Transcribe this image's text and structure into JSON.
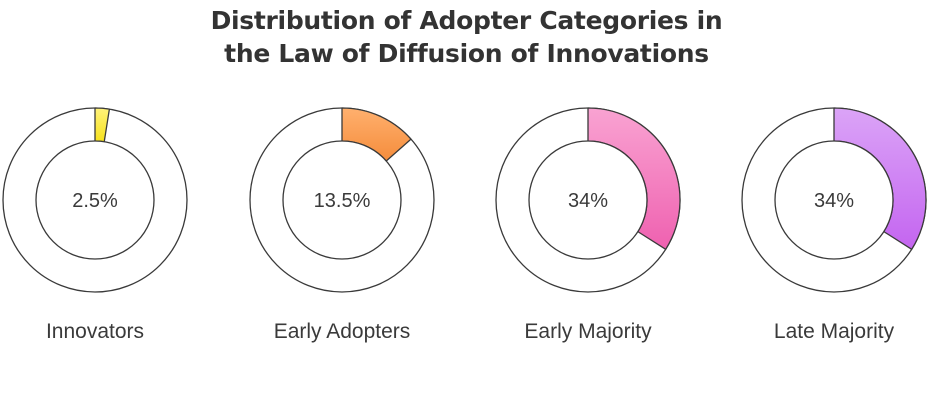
{
  "chart_data": {
    "type": "pie",
    "variant": "donut-small-multiples",
    "title_lines": [
      "Distribution of Adopter Categories in",
      "the Law of Diffusion of Innovations"
    ],
    "categories": [
      "Innovators",
      "Early Adopters",
      "Early Majority",
      "Late Majority"
    ],
    "values": [
      2.5,
      13.5,
      34,
      34
    ],
    "value_labels": [
      "2.5%",
      "13.5%",
      "34%",
      "34%"
    ],
    "unit": "%",
    "max": 100,
    "colors": [
      {
        "from": "#fff27a",
        "to": "#f7e21c"
      },
      {
        "from": "#ffb06e",
        "to": "#f58d3c"
      },
      {
        "from": "#f9a3d2",
        "to": "#ef61b0"
      },
      {
        "from": "#dba4f7",
        "to": "#c465f0"
      }
    ]
  }
}
